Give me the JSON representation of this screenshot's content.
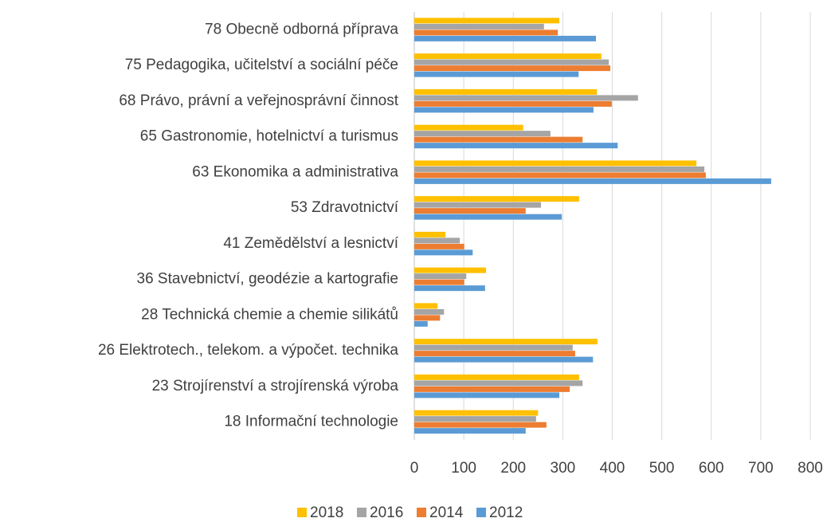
{
  "chart_data": {
    "type": "bar",
    "orientation": "horizontal",
    "categories": [
      "78 Obecně odborná příprava",
      "75 Pedagogika, učitelství a sociální péče",
      "68 Právo, právní a veřejnosprávní činnost",
      "65 Gastronomie, hotelnictví a turismus",
      "63 Ekonomika a administrativa",
      "53 Zdravotnictví",
      "41 Zemědělství a lesnictví",
      "36 Stavebnictví, geodézie a kartografie",
      "28 Technická chemie a chemie silikátů",
      "26 Elektrotech., telekom. a výpočet. technika",
      "23 Strojírenství a strojírenská výroba",
      "18 Informační technologie"
    ],
    "series": [
      {
        "name": "2018",
        "color": "#ffc000",
        "values": [
          293,
          378,
          369,
          220,
          570,
          333,
          63,
          145,
          47,
          370,
          333,
          250
        ]
      },
      {
        "name": "2016",
        "color": "#a5a5a5",
        "values": [
          262,
          393,
          452,
          275,
          586,
          256,
          92,
          105,
          60,
          320,
          340,
          246
        ]
      },
      {
        "name": "2014",
        "color": "#ed7d31",
        "values": [
          290,
          396,
          399,
          340,
          589,
          225,
          101,
          101,
          52,
          325,
          314,
          267
        ]
      },
      {
        "name": "2012",
        "color": "#5b9bd5",
        "values": [
          367,
          332,
          362,
          411,
          721,
          298,
          118,
          143,
          27,
          361,
          293,
          225
        ]
      }
    ],
    "xlim": [
      0,
      800
    ],
    "xticks": [
      0,
      100,
      200,
      300,
      400,
      500,
      600,
      700,
      800
    ],
    "grid": true,
    "legend": "bottom"
  }
}
